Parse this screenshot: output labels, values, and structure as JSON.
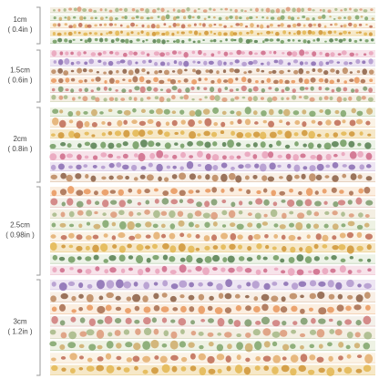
{
  "groups": [
    {
      "size": "1cm",
      "inches": "( 0.4in )"
    },
    {
      "size": "1.5cm",
      "inches": "( 0.6in )"
    },
    {
      "size": "2cm",
      "inches": "( 0.8in )"
    },
    {
      "size": "2.5cm",
      "inches": "( 0.98in )"
    },
    {
      "size": "3cm",
      "inches": "( 1.2in )"
    }
  ]
}
